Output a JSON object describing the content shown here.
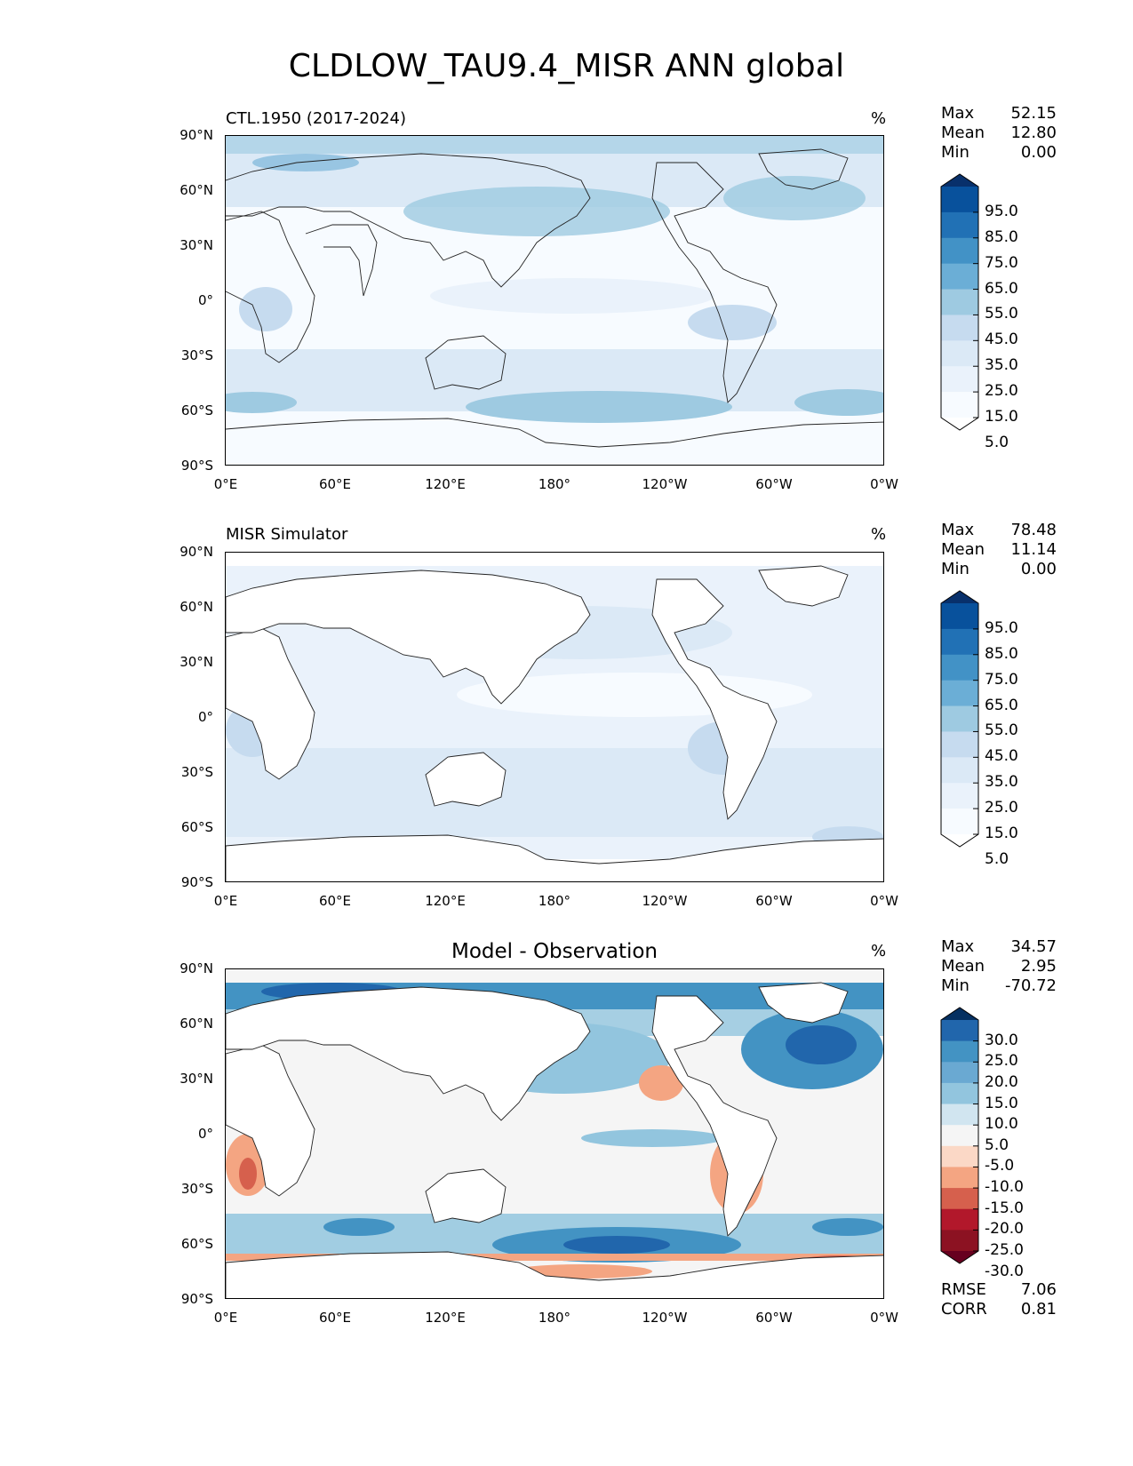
{
  "title": "CLDLOW_TAU9.4_MISR ANN global",
  "lat_ticks": [
    "90°N",
    "60°N",
    "30°N",
    "0°",
    "30°S",
    "60°S",
    "90°S"
  ],
  "lon_ticks": [
    "0°E",
    "60°E",
    "120°E",
    "180°",
    "120°W",
    "60°W",
    "0°W"
  ],
  "panels": [
    {
      "title": "CTL.1950 (2017-2024)",
      "title_style": "left",
      "unit": "%",
      "stats": [
        {
          "label": "Max",
          "value": "52.15"
        },
        {
          "label": "Mean",
          "value": "12.80"
        },
        {
          "label": "Min",
          "value": "0.00"
        }
      ],
      "colorbar_labels": [
        "95.0",
        "85.0",
        "75.0",
        "65.0",
        "55.0",
        "45.0",
        "35.0",
        "25.0",
        "15.0",
        "5.0"
      ],
      "colorbar_colors": [
        "#08306b",
        "#08519c",
        "#2171b5",
        "#4292c6",
        "#6baed6",
        "#9ecae1",
        "#c6dbef",
        "#dbe9f6",
        "#eaf2fb",
        "#f7fbff",
        "#ffffff"
      ]
    },
    {
      "title": "MISR Simulator",
      "title_style": "left",
      "unit": "%",
      "stats": [
        {
          "label": "Max",
          "value": "78.48"
        },
        {
          "label": "Mean",
          "value": "11.14"
        },
        {
          "label": "Min",
          "value": "0.00"
        }
      ],
      "colorbar_labels": [
        "95.0",
        "85.0",
        "75.0",
        "65.0",
        "55.0",
        "45.0",
        "35.0",
        "25.0",
        "15.0",
        "5.0"
      ],
      "colorbar_colors": [
        "#08306b",
        "#08519c",
        "#2171b5",
        "#4292c6",
        "#6baed6",
        "#9ecae1",
        "#c6dbef",
        "#dbe9f6",
        "#eaf2fb",
        "#f7fbff",
        "#ffffff"
      ]
    },
    {
      "title": "Model - Observation",
      "title_style": "center",
      "unit": "%",
      "stats": [
        {
          "label": "Max",
          "value": "34.57"
        },
        {
          "label": "Mean",
          "value": "2.95"
        },
        {
          "label": "Min",
          "value": "-70.72"
        }
      ],
      "colorbar_labels": [
        "30.0",
        "25.0",
        "20.0",
        "15.0",
        "10.0",
        "5.0",
        "-5.0",
        "-10.0",
        "-15.0",
        "-20.0",
        "-25.0",
        "-30.0"
      ],
      "colorbar_colors": [
        "#053061",
        "#2166ac",
        "#4393c3",
        "#6aa9d2",
        "#92c5de",
        "#d1e5f0",
        "#f5f5f5",
        "#fbd8c6",
        "#f4a582",
        "#d6604d",
        "#b2182b",
        "#8c1222",
        "#67001f"
      ],
      "extra_stats": [
        {
          "label": "RMSE",
          "value": "7.06"
        },
        {
          "label": "CORR",
          "value": "0.81"
        }
      ]
    }
  ]
}
